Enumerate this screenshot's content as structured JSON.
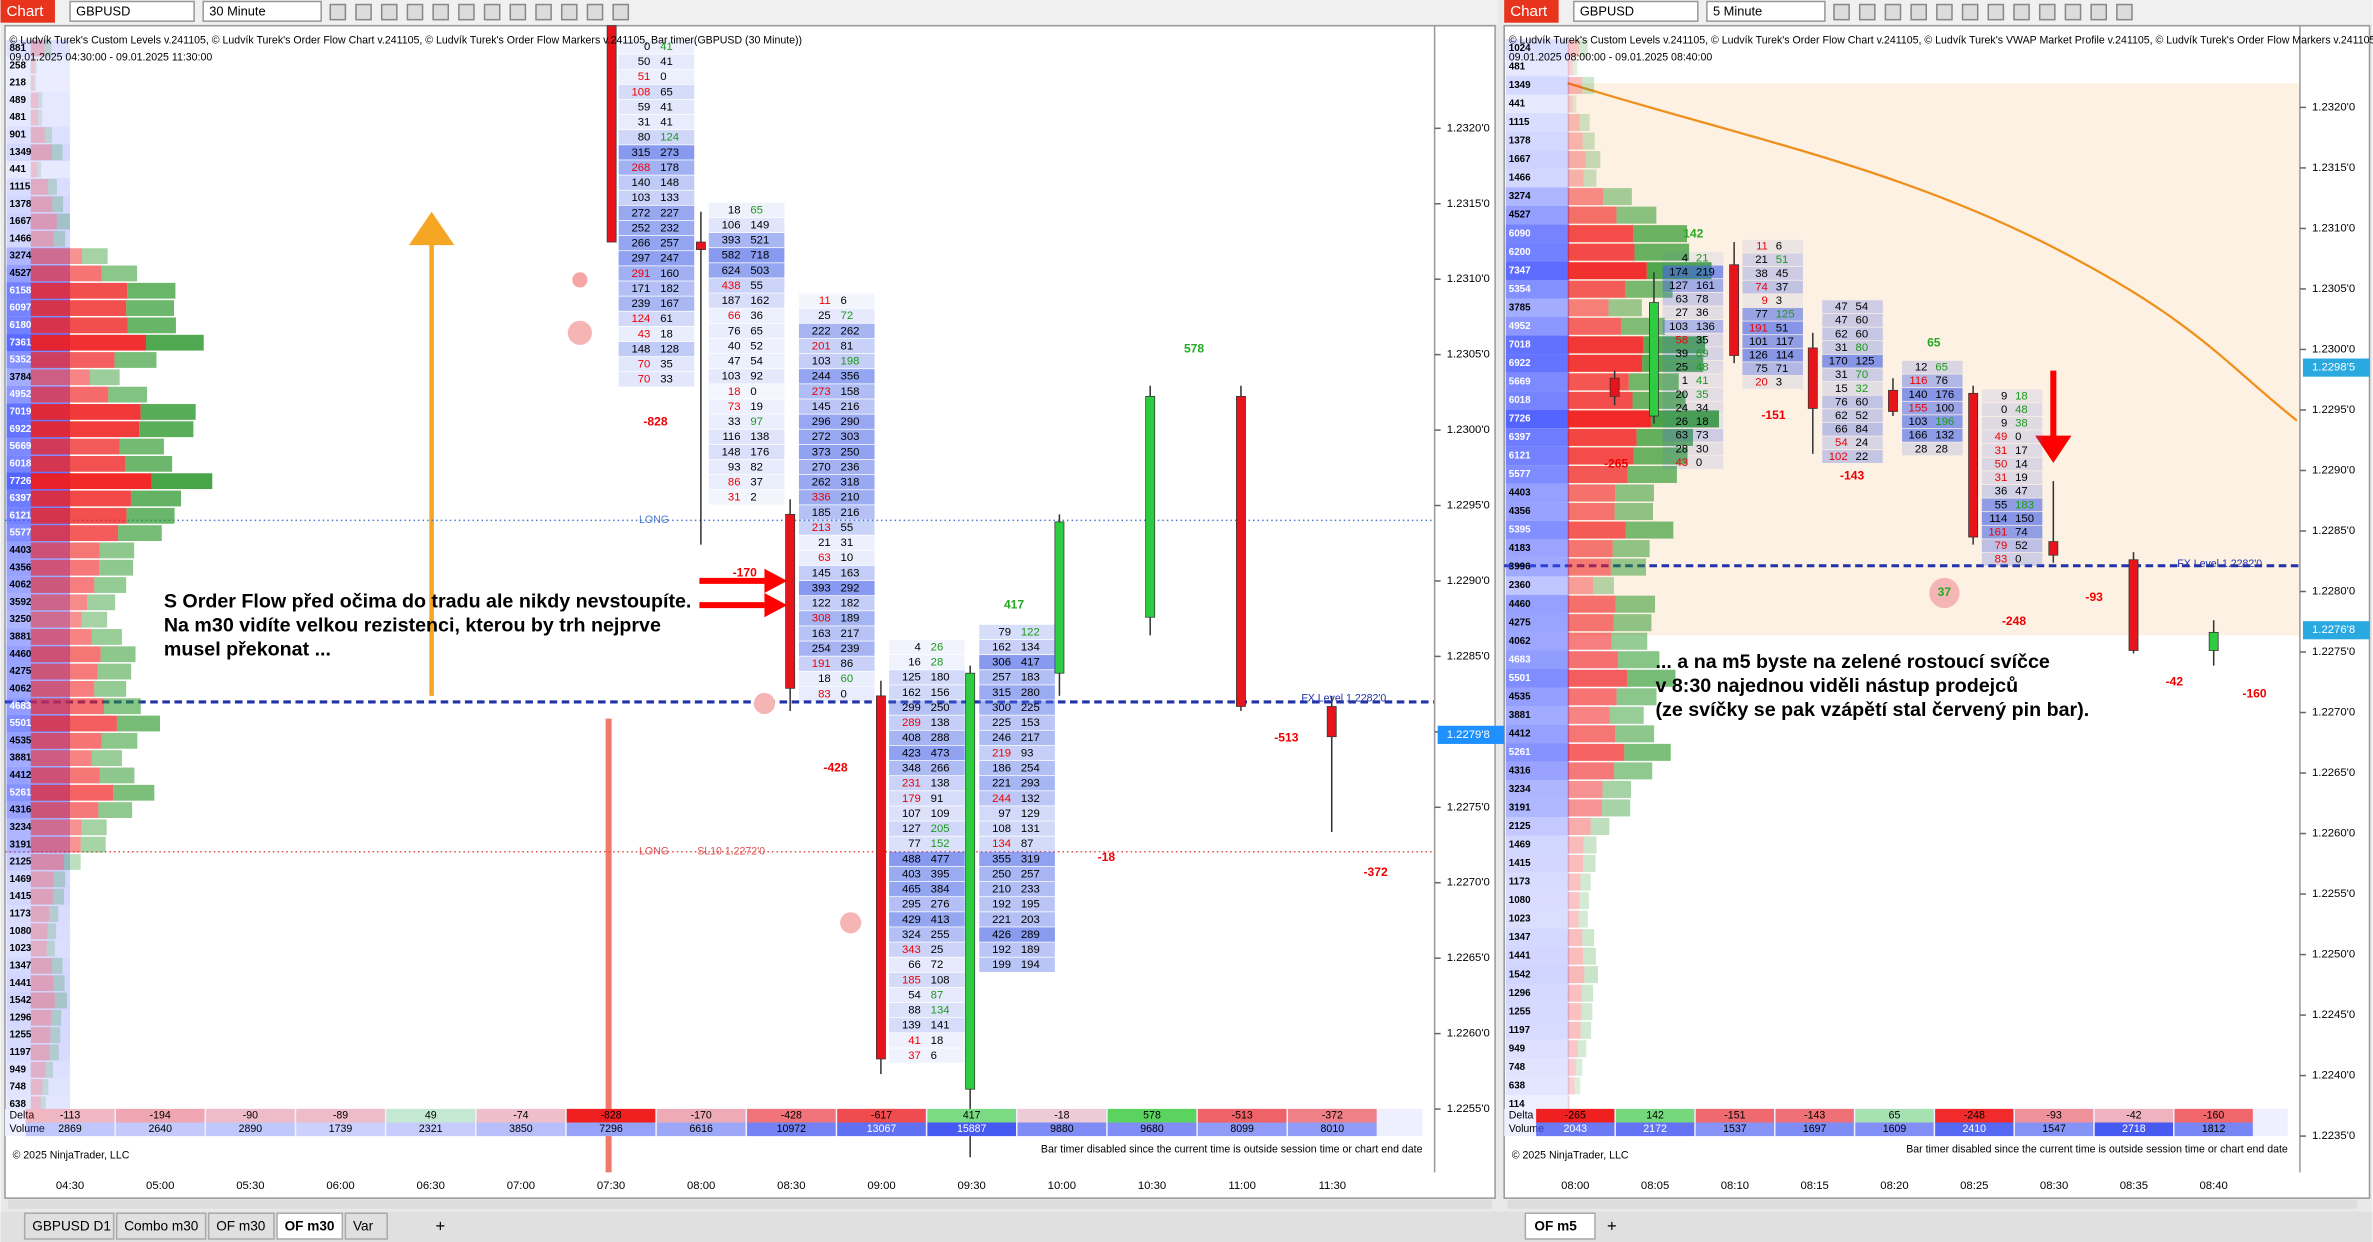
{
  "ui": {
    "left": {
      "window_label": "Chart",
      "instrument": "GBPUSD",
      "timeframe": "30 Minute"
    },
    "right": {
      "window_label": "Chart",
      "instrument": "GBPUSD",
      "timeframe": "5 Minute"
    },
    "tabs_left": [
      "GBPUSD D1",
      "Combo m30",
      "OF m30",
      "OF m30",
      "Var"
    ],
    "tabs_right": [
      "OF m5"
    ],
    "add_tab": "+"
  },
  "chart_data": [
    {
      "type": "footprint",
      "title": "© Ludvík Turek's Custom Levels v.241105, © Ludvík Turek's Order Flow Chart v.241105, © Ludvík Turek's Order Flow Markers v.241105, Bar timer(GBPUSD (30 Minute))",
      "subtitle": "09.01.2025 04:30:00 - 09.01.2025 11:30:00",
      "categories": [
        "04:30",
        "05:00",
        "05:30",
        "06:00",
        "06:30",
        "07:00",
        "07:30",
        "08:00",
        "08:30",
        "09:00",
        "09:30",
        "10:00",
        "10:30",
        "11:00",
        "11:30"
      ],
      "ylim": [
        1.22508,
        1.23268
      ],
      "yticks": [
        {
          "value": 1.232,
          "label": "1.2320'0"
        },
        {
          "value": 1.2315,
          "label": "1.2315'0"
        },
        {
          "value": 1.231,
          "label": "1.2310'0"
        },
        {
          "value": 1.2305,
          "label": "1.2305'0"
        },
        {
          "value": 1.23,
          "label": "1.2300'0"
        },
        {
          "value": 1.2295,
          "label": "1.2295'0"
        },
        {
          "value": 1.229,
          "label": "1.2290'0"
        },
        {
          "value": 1.2285,
          "label": "1.2285'0"
        },
        {
          "value": 1.228,
          "label": "1.2280'0"
        },
        {
          "value": 1.2275,
          "label": "1.2275'0"
        },
        {
          "value": 1.227,
          "label": "1.2270'0"
        },
        {
          "value": 1.2265,
          "label": "1.2265'0"
        },
        {
          "value": 1.226,
          "label": "1.2260'0"
        },
        {
          "value": 1.2255,
          "label": "1.2255'0"
        }
      ],
      "price_labels": [
        {
          "value": 1.22798,
          "label": "1.2279'8"
        }
      ],
      "delta_label": "Delta",
      "delta": [
        -113,
        -194,
        -90,
        -89,
        49,
        -74,
        -828,
        -170,
        -428,
        -617,
        417,
        -18,
        578,
        -513,
        -372
      ],
      "volume_label": "Volume",
      "volume": [
        2869,
        2640,
        2890,
        1739,
        2321,
        3850,
        7296,
        6616,
        10972,
        13067,
        15887,
        9880,
        9680,
        8099,
        8010
      ],
      "profile": [
        881,
        258,
        218,
        489,
        481,
        901,
        1349,
        441,
        1115,
        1378,
        1667,
        1466,
        3274,
        4527,
        6158,
        6097,
        6180,
        7361,
        5352,
        3784,
        4952,
        7019,
        6922,
        5669,
        6018,
        7726,
        6397,
        6121,
        5577,
        4403,
        4356,
        4062,
        3592,
        3250,
        3881,
        4460,
        4275,
        4062,
        4683,
        5501,
        4535,
        3881,
        4412,
        5261,
        4316,
        3234,
        3191,
        2125,
        1469,
        1415,
        1173,
        1080,
        1023,
        1347,
        1441,
        1542,
        1296,
        1255,
        1197,
        949,
        748,
        638
      ],
      "footprints": [
        null,
        null,
        null,
        null,
        null,
        null,
        [
          [
            0,
            41
          ],
          [
            50,
            41
          ],
          [
            51,
            0
          ],
          [
            108,
            65
          ],
          [
            59,
            41
          ],
          [
            31,
            41
          ],
          [
            80,
            124
          ],
          [
            315,
            273
          ],
          [
            268,
            178
          ],
          [
            140,
            148
          ],
          [
            103,
            133
          ],
          [
            272,
            227
          ],
          [
            252,
            232
          ],
          [
            266,
            257
          ],
          [
            297,
            247
          ],
          [
            291,
            160
          ],
          [
            171,
            182
          ],
          [
            239,
            167
          ],
          [
            124,
            61
          ],
          [
            43,
            18
          ],
          [
            148,
            128
          ],
          [
            70,
            35
          ],
          [
            70,
            33
          ]
        ],
        [
          [
            18,
            65
          ],
          [
            106,
            149
          ],
          [
            393,
            521
          ],
          [
            582,
            718
          ],
          [
            624,
            503
          ],
          [
            438,
            55
          ],
          [
            187,
            162
          ],
          [
            66,
            36
          ],
          [
            76,
            65
          ],
          [
            40,
            52
          ],
          [
            47,
            54
          ],
          [
            103,
            92
          ],
          [
            18,
            0
          ],
          [
            73,
            19
          ],
          [
            33,
            97
          ],
          [
            116,
            138
          ],
          [
            148,
            176
          ],
          [
            93,
            82
          ],
          [
            86,
            37
          ],
          [
            31,
            2
          ]
        ],
        [
          [
            11,
            6
          ],
          [
            25,
            72
          ],
          [
            222,
            262
          ],
          [
            201,
            81
          ],
          [
            103,
            198
          ],
          [
            244,
            356
          ],
          [
            273,
            158
          ],
          [
            145,
            216
          ],
          [
            296,
            290
          ],
          [
            272,
            303
          ],
          [
            373,
            250
          ],
          [
            270,
            236
          ],
          [
            262,
            318
          ],
          [
            336,
            210
          ],
          [
            185,
            216
          ],
          [
            213,
            55
          ],
          [
            21,
            31
          ],
          [
            63,
            10
          ],
          [
            145,
            163
          ],
          [
            393,
            292
          ],
          [
            122,
            182
          ],
          [
            308,
            189
          ],
          [
            163,
            217
          ],
          [
            254,
            239
          ],
          [
            191,
            86
          ],
          [
            18,
            60
          ],
          [
            83,
            0
          ]
        ],
        [
          [
            4,
            26
          ],
          [
            16,
            28
          ],
          [
            125,
            180
          ],
          [
            162,
            156
          ],
          [
            299,
            250
          ],
          [
            289,
            138
          ],
          [
            408,
            288
          ],
          [
            423,
            473
          ],
          [
            348,
            266
          ],
          [
            231,
            138
          ],
          [
            179,
            91
          ],
          [
            107,
            109
          ],
          [
            127,
            205
          ],
          [
            77,
            152
          ],
          [
            488,
            477
          ],
          [
            403,
            395
          ],
          [
            465,
            384
          ],
          [
            295,
            276
          ],
          [
            429,
            413
          ],
          [
            324,
            255
          ],
          [
            343,
            25
          ],
          [
            66,
            72
          ],
          [
            185,
            108
          ],
          [
            54,
            87
          ],
          [
            88,
            134
          ],
          [
            139,
            141
          ],
          [
            41,
            18
          ],
          [
            37,
            6
          ]
        ],
        [
          [
            79,
            122
          ],
          [
            162,
            134
          ],
          [
            306,
            417
          ],
          [
            257,
            183
          ],
          [
            315,
            280
          ],
          [
            300,
            225
          ],
          [
            225,
            153
          ],
          [
            246,
            217
          ],
          [
            219,
            93
          ],
          [
            186,
            254
          ],
          [
            221,
            293
          ],
          [
            244,
            132
          ],
          [
            97,
            129
          ],
          [
            108,
            131
          ],
          [
            134,
            87
          ],
          [
            355,
            319
          ],
          [
            250,
            257
          ],
          [
            210,
            233
          ],
          [
            192,
            195
          ],
          [
            221,
            203
          ],
          [
            426,
            289
          ],
          [
            192,
            189
          ],
          [
            199,
            194
          ]
        ],
        null,
        null,
        null,
        null
      ],
      "markers": [
        -828,
        -170,
        -428,
        417,
        -18,
        578,
        -513,
        -372
      ],
      "levels": [
        "LONG",
        "LONG",
        "SL10 1.2272'0",
        "FX Level 1.2282'0"
      ],
      "annotation": [
        "S Order Flow před očima do tradu ale nikdy nevstoupíte.",
        "Na m30 vidíte velkou rezistenci, kterou by trh nejprve",
        "musel překonat ..."
      ],
      "copyright": "© 2025 NinjaTrader, LLC",
      "note": "Bar timer disabled since the current time is outside session time or chart end date"
    },
    {
      "type": "footprint",
      "title": "© Ludvík Turek's Custom Levels v.241105, © Ludvík Turek's Order Flow Chart v.241105, © Ludvík Turek's VWAP Market Profile v.241105, © Ludvík Turek's Order Flow Markers v.241105, Bar timer(GBPUSD (5 Minute))",
      "subtitle": "09.01.2025 08:00:00 - 09.01.2025 08:40:00",
      "categories": [
        "08:00",
        "08:05",
        "08:10",
        "08:15",
        "08:20",
        "08:25",
        "08:30",
        "08:35",
        "08:40"
      ],
      "ylim": [
        1.2232,
        1.232675
      ],
      "yticks": [
        {
          "value": 1.232,
          "label": "1.2320'0"
        },
        {
          "value": 1.2315,
          "label": "1.2315'0"
        },
        {
          "value": 1.231,
          "label": "1.2310'0"
        },
        {
          "value": 1.2305,
          "label": "1.2305'0"
        },
        {
          "value": 1.23,
          "label": "1.2300'0"
        },
        {
          "value": 1.2295,
          "label": "1.2295'0"
        },
        {
          "value": 1.229,
          "label": "1.2290'0"
        },
        {
          "value": 1.2285,
          "label": "1.2285'0"
        },
        {
          "value": 1.228,
          "label": "1.2280'0"
        },
        {
          "value": 1.2275,
          "label": "1.2275'0"
        },
        {
          "value": 1.227,
          "label": "1.2270'0"
        },
        {
          "value": 1.2265,
          "label": "1.2265'0"
        },
        {
          "value": 1.226,
          "label": "1.2260'0"
        },
        {
          "value": 1.2255,
          "label": "1.2255'0"
        },
        {
          "value": 1.225,
          "label": "1.2250'0"
        },
        {
          "value": 1.2245,
          "label": "1.2245'0"
        },
        {
          "value": 1.224,
          "label": "1.2240'0"
        },
        {
          "value": 1.2235,
          "label": "1.2235'0"
        }
      ],
      "price_labels": [
        {
          "value": 1.22985,
          "label": "1.2298'5"
        },
        {
          "value": 1.22768,
          "label": "1.2276'8"
        }
      ],
      "delta_label": "Delta",
      "delta": [
        -265,
        142,
        -151,
        -143,
        65,
        -248,
        -93,
        -42,
        -160
      ],
      "volume_label": "Volume",
      "volume": [
        2043,
        2172,
        1537,
        1697,
        1609,
        2410,
        1547,
        2718,
        1812
      ],
      "profile": [
        1024,
        481,
        1349,
        441,
        1115,
        1378,
        1667,
        1466,
        3274,
        4527,
        6090,
        6200,
        7347,
        5354,
        3785,
        4952,
        7018,
        6922,
        5669,
        6018,
        7726,
        6397,
        6121,
        5577,
        4403,
        4356,
        5395,
        4183,
        3996,
        2360,
        4460,
        4275,
        4062,
        4683,
        5501,
        4535,
        3881,
        4412,
        5261,
        4316,
        3234,
        3191,
        2125,
        1469,
        1415,
        1173,
        1080,
        1023,
        1347,
        1441,
        1542,
        1296,
        1255,
        1197,
        949,
        748,
        638,
        114
      ],
      "footprints": [
        null,
        [
          [
            4,
            21
          ],
          [
            174,
            219
          ],
          [
            127,
            161
          ],
          [
            63,
            78
          ],
          [
            27,
            36
          ],
          [
            103,
            136
          ],
          [
            58,
            35
          ],
          [
            39,
            69
          ],
          [
            25,
            48
          ],
          [
            1,
            41
          ],
          [
            20,
            35
          ],
          [
            24,
            34
          ],
          [
            26,
            18
          ],
          [
            63,
            73
          ],
          [
            28,
            30
          ],
          [
            43,
            0
          ]
        ],
        [
          [
            11,
            6
          ],
          [
            21,
            51
          ],
          [
            38,
            45
          ],
          [
            74,
            37
          ],
          [
            9,
            3
          ],
          [
            77,
            125
          ],
          [
            191,
            51
          ],
          [
            101,
            117
          ],
          [
            126,
            114
          ],
          [
            75,
            71
          ],
          [
            20,
            3
          ]
        ],
        [
          [
            47,
            54
          ],
          [
            47,
            60
          ],
          [
            62,
            60
          ],
          [
            31,
            80
          ],
          [
            170,
            125
          ],
          [
            31,
            70
          ],
          [
            15,
            32
          ],
          [
            76,
            60
          ],
          [
            62,
            52
          ],
          [
            66,
            84
          ],
          [
            54,
            24
          ],
          [
            102,
            22
          ]
        ],
        [
          [
            12,
            65
          ],
          [
            116,
            76
          ],
          [
            140,
            176
          ],
          [
            155,
            100
          ],
          [
            103,
            196
          ],
          [
            166,
            132
          ],
          [
            28,
            28
          ]
        ],
        [
          [
            9,
            18
          ],
          [
            0,
            48
          ],
          [
            9,
            38
          ],
          [
            49,
            0
          ],
          [
            31,
            17
          ],
          [
            50,
            14
          ],
          [
            31,
            19
          ],
          [
            36,
            47
          ],
          [
            55,
            183
          ],
          [
            114,
            150
          ],
          [
            161,
            74
          ],
          [
            79,
            52
          ],
          [
            83,
            0
          ]
        ],
        null,
        null,
        null
      ],
      "markers": [
        -265,
        142,
        -151,
        65,
        -143,
        -248,
        -93,
        -42,
        -160,
        37
      ],
      "levels": [
        "FX Level 1.2282'0"
      ],
      "annotation": [
        "... a na m5 byste na zelené rostoucí svíčce",
        "v 8:30 najednou viděli nástup prodejců",
        "(ze svíčky se pak vzápětí stal červený pin bar)."
      ],
      "copyright": "© 2025 NinjaTrader, LLC",
      "note": "Bar timer disabled since the current time is outside session time or chart end date"
    }
  ]
}
